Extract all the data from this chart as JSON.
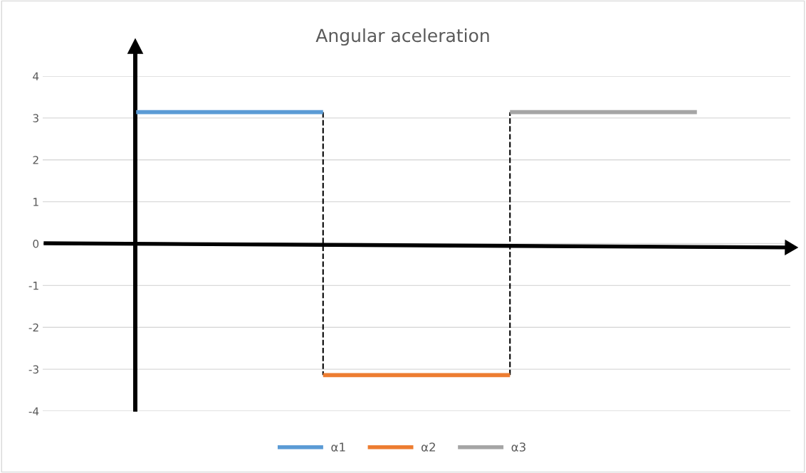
{
  "chart_data": {
    "type": "line",
    "title": "Angular aceleration",
    "categories": [
      null,
      null,
      null,
      null
    ],
    "series": [
      {
        "name": "α1",
        "color": "#5b9bd5",
        "values": [
          3.14,
          3.14,
          null,
          null
        ]
      },
      {
        "name": "α2",
        "color": "#ed7d31",
        "values": [
          null,
          -3.14,
          -3.14,
          null
        ]
      },
      {
        "name": "α3",
        "color": "#a5a5a5",
        "values": [
          null,
          null,
          3.14,
          3.14
        ]
      }
    ],
    "ylim": [
      -4,
      4
    ],
    "yticks": [
      -4,
      -3,
      -2,
      -1,
      0,
      1,
      2,
      3,
      4
    ],
    "grid": "y",
    "legend": "bottom",
    "tick_labels": "y",
    "marker": "none",
    "line_style": "solid"
  }
}
